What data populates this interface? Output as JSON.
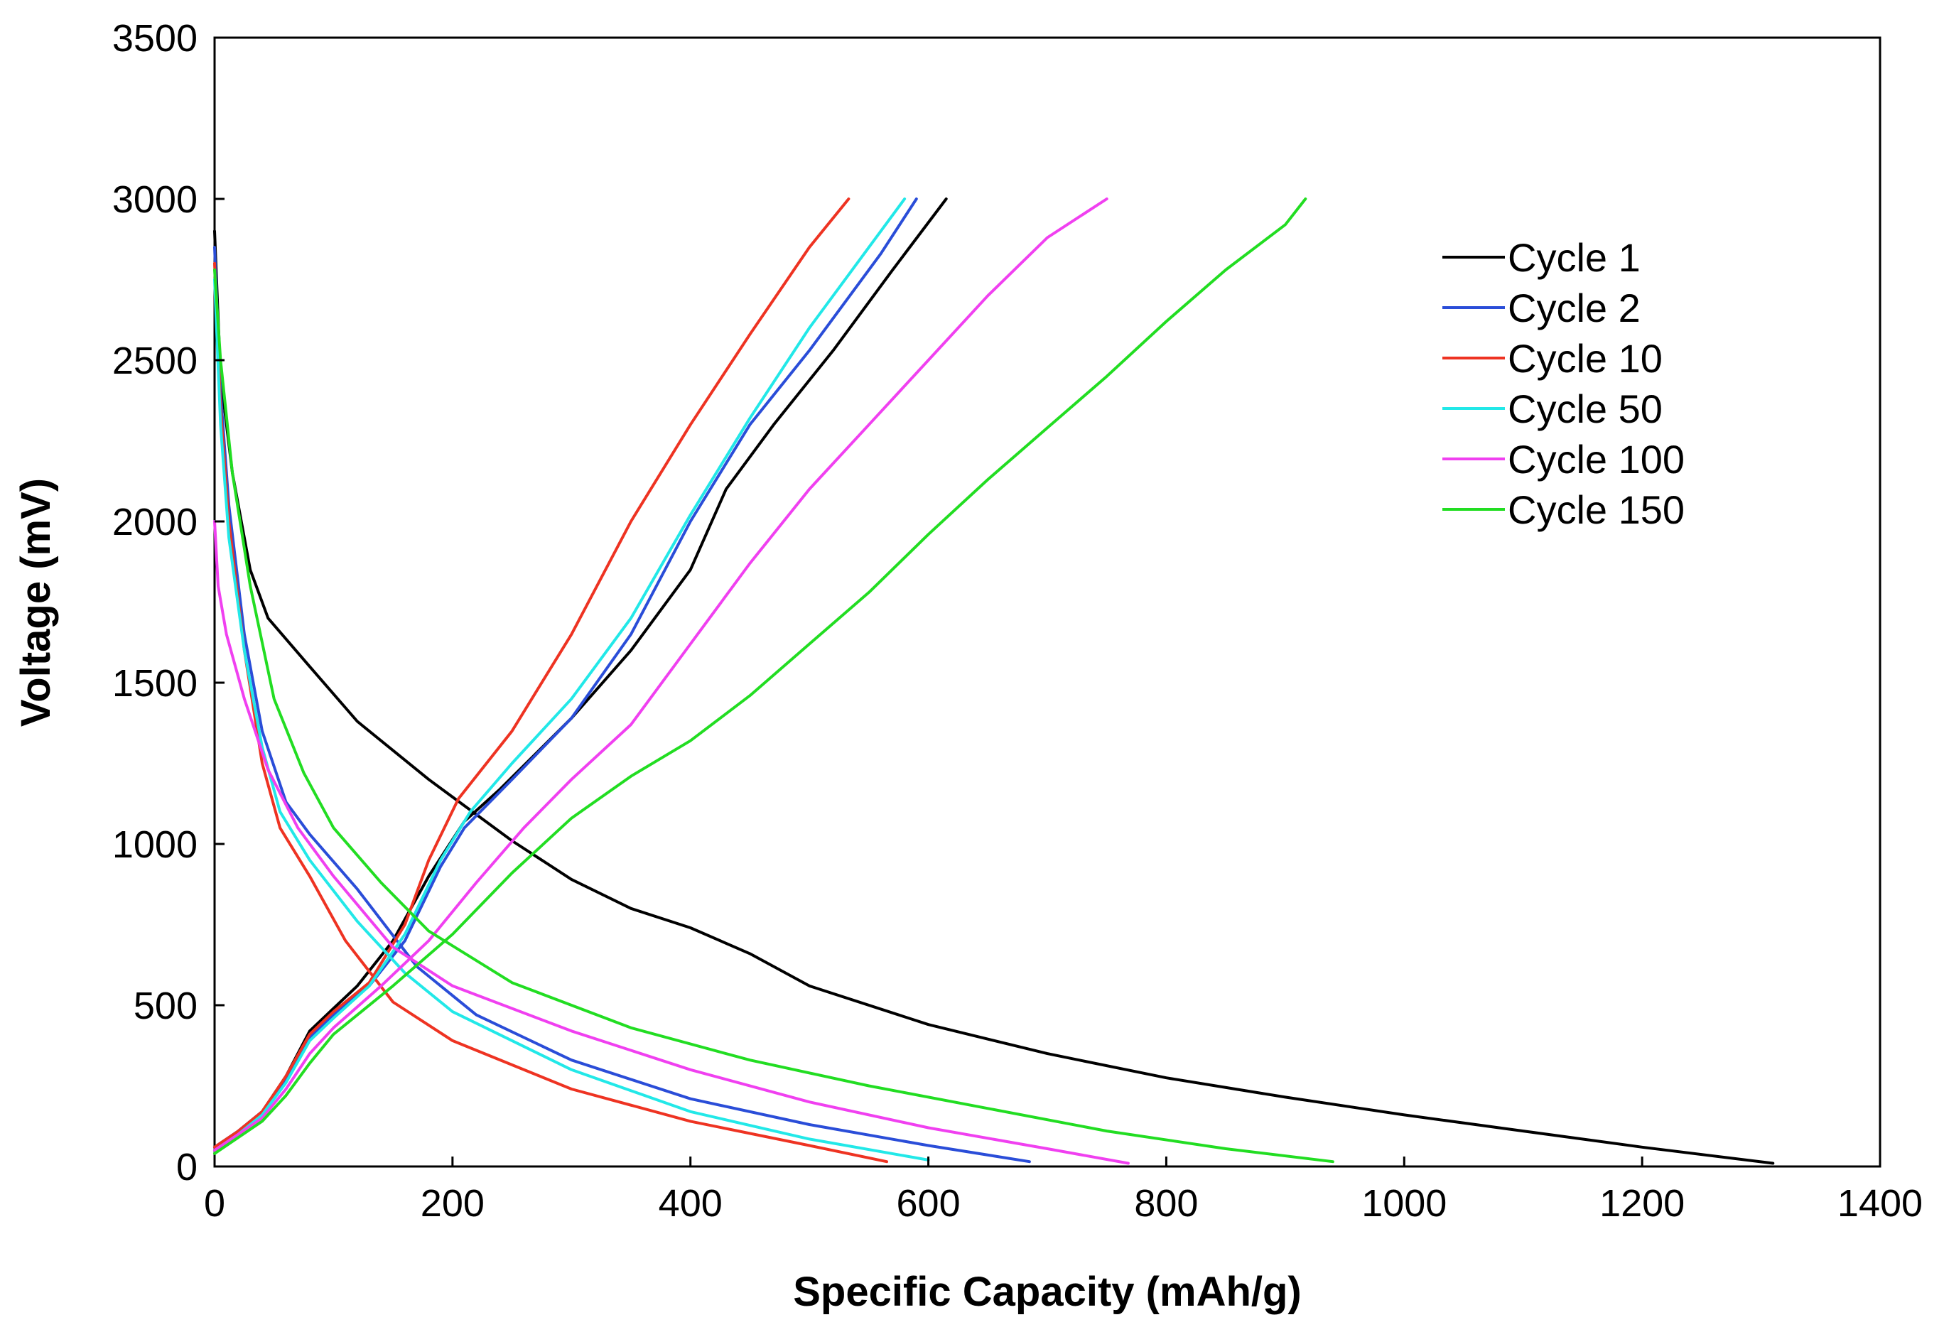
{
  "chart_data": {
    "type": "line",
    "title": "",
    "xlabel": "Specific Capacity (mAh/g)",
    "ylabel": "Voltage (mV)",
    "xlim": [
      0,
      1400
    ],
    "ylim": [
      0,
      3500
    ],
    "xticks": [
      0,
      200,
      400,
      600,
      800,
      1000,
      1200,
      1400
    ],
    "yticks": [
      0,
      500,
      1000,
      1500,
      2000,
      2500,
      3000,
      3500
    ],
    "grid": false,
    "legend_position": "top-right",
    "series": [
      {
        "name": "Cycle 1",
        "color": "#000000",
        "discharge": [
          [
            0,
            2900
          ],
          [
            5,
            2450
          ],
          [
            15,
            2150
          ],
          [
            30,
            1850
          ],
          [
            45,
            1700
          ],
          [
            80,
            1550
          ],
          [
            120,
            1380
          ],
          [
            180,
            1200
          ],
          [
            250,
            1010
          ],
          [
            300,
            890
          ],
          [
            350,
            800
          ],
          [
            400,
            740
          ],
          [
            450,
            660
          ],
          [
            500,
            560
          ],
          [
            600,
            440
          ],
          [
            700,
            350
          ],
          [
            800,
            275
          ],
          [
            900,
            215
          ],
          [
            1000,
            160
          ],
          [
            1100,
            110
          ],
          [
            1200,
            60
          ],
          [
            1310,
            10
          ]
        ],
        "charge": [
          [
            0,
            60
          ],
          [
            20,
            110
          ],
          [
            40,
            170
          ],
          [
            60,
            280
          ],
          [
            80,
            420
          ],
          [
            100,
            490
          ],
          [
            120,
            560
          ],
          [
            150,
            700
          ],
          [
            180,
            900
          ],
          [
            210,
            1070
          ],
          [
            240,
            1170
          ],
          [
            270,
            1280
          ],
          [
            300,
            1390
          ],
          [
            350,
            1600
          ],
          [
            400,
            1850
          ],
          [
            430,
            2100
          ],
          [
            470,
            2300
          ],
          [
            520,
            2530
          ],
          [
            570,
            2780
          ],
          [
            615,
            3000
          ]
        ]
      },
      {
        "name": "Cycle 2",
        "color": "#2a4dd8",
        "discharge": [
          [
            0,
            2850
          ],
          [
            5,
            2400
          ],
          [
            12,
            2050
          ],
          [
            25,
            1650
          ],
          [
            40,
            1350
          ],
          [
            60,
            1130
          ],
          [
            80,
            1030
          ],
          [
            120,
            860
          ],
          [
            170,
            620
          ],
          [
            220,
            470
          ],
          [
            300,
            330
          ],
          [
            400,
            210
          ],
          [
            500,
            130
          ],
          [
            600,
            65
          ],
          [
            685,
            15
          ]
        ],
        "charge": [
          [
            0,
            60
          ],
          [
            20,
            110
          ],
          [
            40,
            170
          ],
          [
            60,
            270
          ],
          [
            80,
            400
          ],
          [
            100,
            470
          ],
          [
            130,
            560
          ],
          [
            160,
            700
          ],
          [
            190,
            930
          ],
          [
            210,
            1050
          ],
          [
            250,
            1200
          ],
          [
            300,
            1390
          ],
          [
            350,
            1650
          ],
          [
            400,
            2000
          ],
          [
            450,
            2300
          ],
          [
            500,
            2530
          ],
          [
            560,
            2830
          ],
          [
            590,
            3000
          ]
        ]
      },
      {
        "name": "Cycle 10",
        "color": "#ee3322",
        "discharge": [
          [
            0,
            2800
          ],
          [
            5,
            2350
          ],
          [
            12,
            2000
          ],
          [
            25,
            1600
          ],
          [
            40,
            1250
          ],
          [
            55,
            1050
          ],
          [
            80,
            900
          ],
          [
            110,
            700
          ],
          [
            150,
            510
          ],
          [
            200,
            390
          ],
          [
            300,
            240
          ],
          [
            400,
            140
          ],
          [
            500,
            65
          ],
          [
            565,
            15
          ]
        ],
        "charge": [
          [
            0,
            60
          ],
          [
            20,
            110
          ],
          [
            40,
            170
          ],
          [
            60,
            280
          ],
          [
            80,
            410
          ],
          [
            100,
            480
          ],
          [
            130,
            570
          ],
          [
            160,
            750
          ],
          [
            180,
            950
          ],
          [
            205,
            1140
          ],
          [
            250,
            1350
          ],
          [
            300,
            1650
          ],
          [
            350,
            2000
          ],
          [
            400,
            2300
          ],
          [
            450,
            2580
          ],
          [
            500,
            2850
          ],
          [
            533,
            3000
          ]
        ]
      },
      {
        "name": "Cycle 50",
        "color": "#22e8e8",
        "discharge": [
          [
            0,
            2750
          ],
          [
            5,
            2300
          ],
          [
            12,
            1950
          ],
          [
            25,
            1600
          ],
          [
            40,
            1300
          ],
          [
            55,
            1100
          ],
          [
            80,
            950
          ],
          [
            120,
            760
          ],
          [
            160,
            600
          ],
          [
            200,
            480
          ],
          [
            300,
            300
          ],
          [
            400,
            170
          ],
          [
            500,
            85
          ],
          [
            600,
            20
          ]
        ],
        "charge": [
          [
            0,
            50
          ],
          [
            20,
            100
          ],
          [
            40,
            160
          ],
          [
            60,
            260
          ],
          [
            80,
            390
          ],
          [
            100,
            460
          ],
          [
            130,
            560
          ],
          [
            160,
            720
          ],
          [
            190,
            950
          ],
          [
            215,
            1100
          ],
          [
            250,
            1250
          ],
          [
            300,
            1450
          ],
          [
            350,
            1700
          ],
          [
            400,
            2020
          ],
          [
            450,
            2320
          ],
          [
            500,
            2600
          ],
          [
            550,
            2850
          ],
          [
            580,
            3000
          ]
        ]
      },
      {
        "name": "Cycle 100",
        "color": "#f040f0",
        "discharge": [
          [
            0,
            2000
          ],
          [
            3,
            1800
          ],
          [
            10,
            1650
          ],
          [
            25,
            1450
          ],
          [
            45,
            1230
          ],
          [
            70,
            1050
          ],
          [
            100,
            900
          ],
          [
            150,
            680
          ],
          [
            200,
            560
          ],
          [
            300,
            420
          ],
          [
            400,
            300
          ],
          [
            500,
            200
          ],
          [
            600,
            120
          ],
          [
            700,
            55
          ],
          [
            768,
            10
          ]
        ],
        "charge": [
          [
            0,
            50
          ],
          [
            20,
            100
          ],
          [
            40,
            150
          ],
          [
            60,
            240
          ],
          [
            80,
            350
          ],
          [
            100,
            430
          ],
          [
            140,
            560
          ],
          [
            180,
            700
          ],
          [
            220,
            880
          ],
          [
            260,
            1050
          ],
          [
            300,
            1200
          ],
          [
            350,
            1370
          ],
          [
            400,
            1620
          ],
          [
            450,
            1870
          ],
          [
            500,
            2100
          ],
          [
            550,
            2300
          ],
          [
            600,
            2500
          ],
          [
            650,
            2700
          ],
          [
            700,
            2880
          ],
          [
            750,
            3000
          ]
        ]
      },
      {
        "name": "Cycle 150",
        "color": "#22dd22",
        "discharge": [
          [
            0,
            2780
          ],
          [
            5,
            2500
          ],
          [
            15,
            2150
          ],
          [
            30,
            1800
          ],
          [
            50,
            1450
          ],
          [
            75,
            1220
          ],
          [
            100,
            1050
          ],
          [
            140,
            880
          ],
          [
            180,
            730
          ],
          [
            250,
            570
          ],
          [
            350,
            430
          ],
          [
            450,
            330
          ],
          [
            550,
            250
          ],
          [
            650,
            180
          ],
          [
            750,
            110
          ],
          [
            850,
            55
          ],
          [
            940,
            15
          ]
        ],
        "charge": [
          [
            0,
            40
          ],
          [
            20,
            90
          ],
          [
            40,
            140
          ],
          [
            60,
            220
          ],
          [
            80,
            320
          ],
          [
            100,
            410
          ],
          [
            150,
            560
          ],
          [
            200,
            720
          ],
          [
            250,
            910
          ],
          [
            300,
            1080
          ],
          [
            350,
            1210
          ],
          [
            400,
            1320
          ],
          [
            450,
            1460
          ],
          [
            500,
            1620
          ],
          [
            550,
            1780
          ],
          [
            600,
            1960
          ],
          [
            650,
            2130
          ],
          [
            700,
            2290
          ],
          [
            750,
            2450
          ],
          [
            800,
            2620
          ],
          [
            850,
            2780
          ],
          [
            900,
            2920
          ],
          [
            917,
            3000
          ]
        ]
      }
    ]
  }
}
